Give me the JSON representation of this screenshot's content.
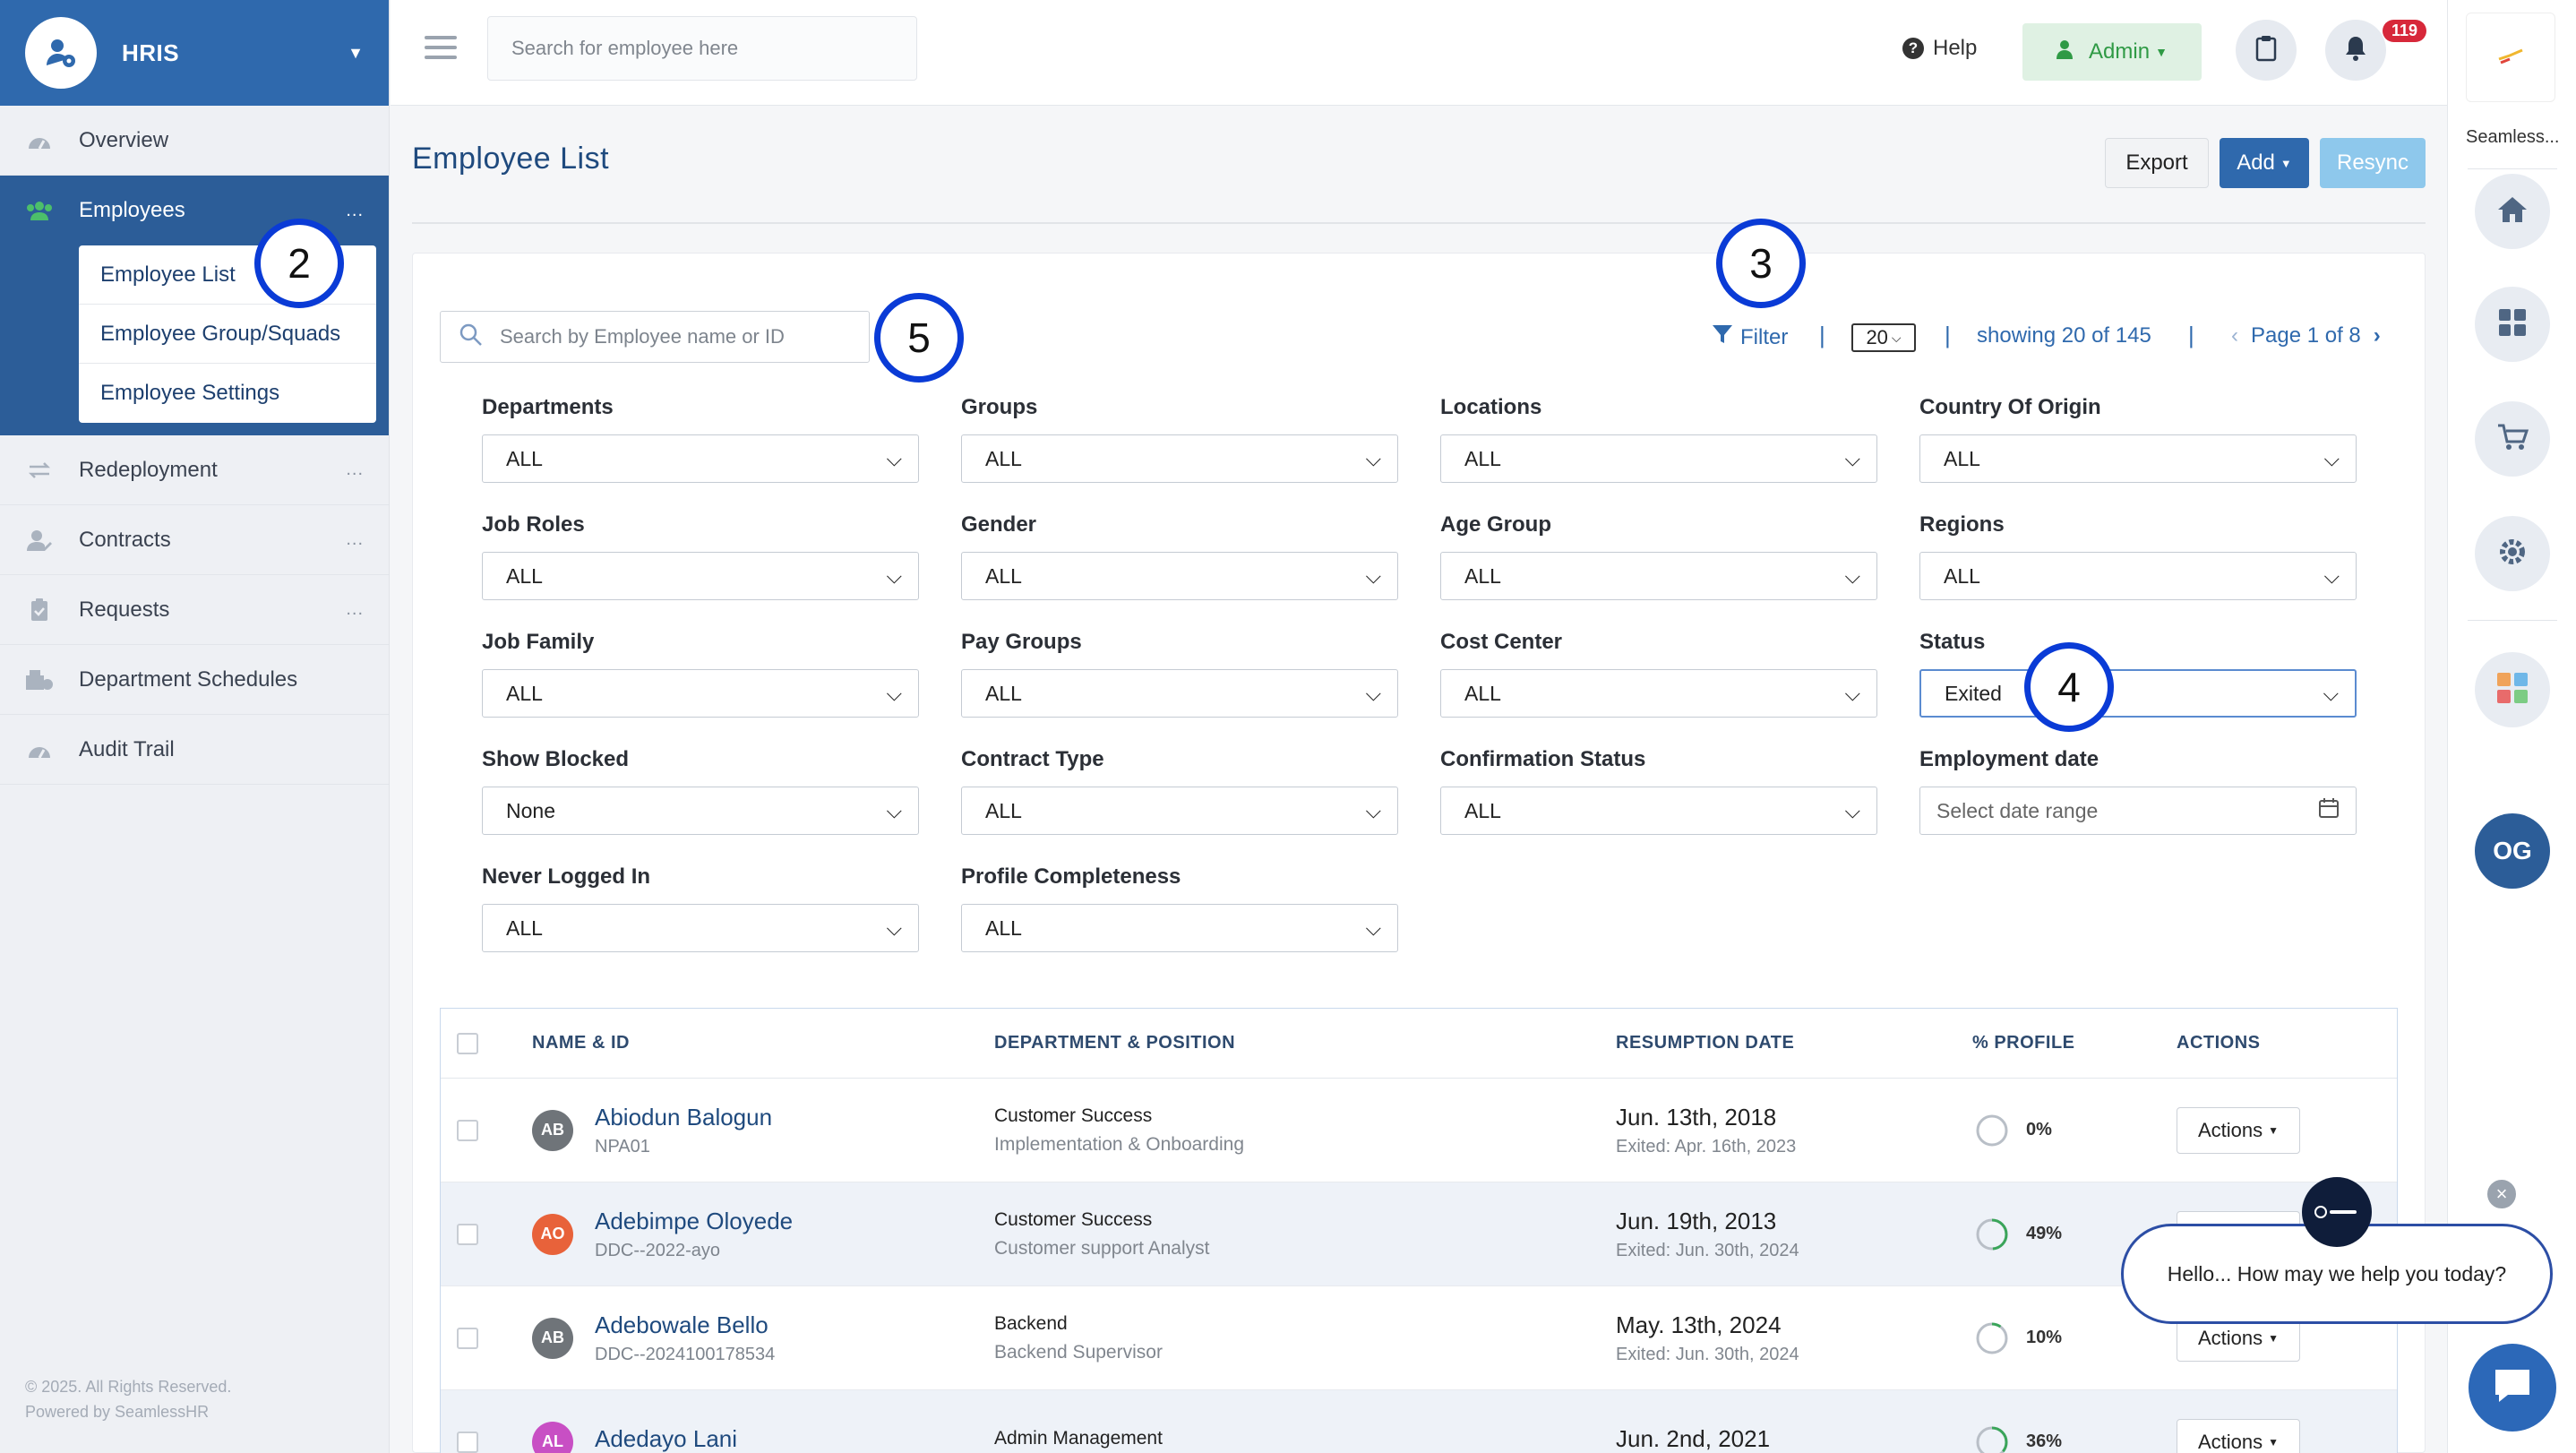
{
  "sidebar": {
    "app_title": "HRIS",
    "items": [
      {
        "label": "Overview"
      },
      {
        "label": "Employees",
        "more": "..."
      },
      {
        "label": "Redeployment",
        "more": "..."
      },
      {
        "label": "Contracts",
        "more": "..."
      },
      {
        "label": "Requests",
        "more": "..."
      },
      {
        "label": "Department Schedules"
      },
      {
        "label": "Audit Trail"
      }
    ],
    "subitems": [
      "Employee List",
      "Employee Group/Squads",
      "Employee Settings"
    ],
    "footer_line1": "© 2025. All Rights Reserved.",
    "footer_line2": "Powered by SeamlessHR"
  },
  "topbar": {
    "search_placeholder": "Search for employee here",
    "help_label": "Help",
    "admin_label": "Admin",
    "notification_count": "119"
  },
  "rail": {
    "app_name": "Seamless...",
    "user_initials": "OG"
  },
  "header": {
    "title": "Employee  List",
    "export_label": "Export",
    "add_label": "Add",
    "resync_label": "Resync"
  },
  "toolbar": {
    "search_placeholder": "Search by Employee name or ID",
    "filter_label": "Filter",
    "page_size": "20",
    "showing": "showing 20 of 145",
    "page": "Page 1 of 8",
    "separator": "|"
  },
  "filters": [
    {
      "label": "Departments",
      "value": "ALL"
    },
    {
      "label": "Groups",
      "value": "ALL"
    },
    {
      "label": "Locations",
      "value": "ALL"
    },
    {
      "label": "Country Of Origin",
      "value": "ALL"
    },
    {
      "label": "Job Roles",
      "value": "ALL"
    },
    {
      "label": "Gender",
      "value": "ALL"
    },
    {
      "label": "Age Group",
      "value": "ALL"
    },
    {
      "label": "Regions",
      "value": "ALL"
    },
    {
      "label": "Job Family",
      "value": "ALL"
    },
    {
      "label": "Pay Groups",
      "value": "ALL"
    },
    {
      "label": "Cost Center",
      "value": "ALL"
    },
    {
      "label": "Status",
      "value": "Exited"
    },
    {
      "label": "Show Blocked",
      "value": "None"
    },
    {
      "label": "Contract Type",
      "value": "ALL"
    },
    {
      "label": "Confirmation Status",
      "value": "ALL"
    },
    {
      "label": "Employment date",
      "value": "Select date range"
    },
    {
      "label": "Never Logged In",
      "value": "ALL"
    },
    {
      "label": "Profile Completeness",
      "value": "ALL"
    }
  ],
  "table": {
    "headers": [
      "NAME & ID",
      "DEPARTMENT & POSITION",
      "RESUMPTION DATE",
      "% PROFILE",
      "ACTIONS"
    ],
    "actions_label": "Actions",
    "rows": [
      {
        "initials": "AB",
        "avatar_color": "#6f7479",
        "name": "Abiodun Balogun",
        "id": "NPA01",
        "dept": "Customer Success",
        "position": "Implementation & Onboarding",
        "date": "Jun. 13th, 2018",
        "exited": "Exited: Apr. 16th, 2023",
        "profile": "0%",
        "profile_value": 0
      },
      {
        "initials": "AO",
        "avatar_color": "#e8623a",
        "name": "Adebimpe Oloyede",
        "id": "DDC--2022-ayo",
        "dept": "Customer Success",
        "position": "Customer support Analyst",
        "date": "Jun. 19th, 2013",
        "exited": "Exited: Jun. 30th, 2024",
        "profile": "49%",
        "profile_value": 49
      },
      {
        "initials": "AB",
        "avatar_color": "#6f7479",
        "name": "Adebowale Bello",
        "id": "DDC--2024100178534",
        "dept": "Backend",
        "position": "Backend Supervisor",
        "date": "May. 13th, 2024",
        "exited": "Exited: Jun. 30th, 2024",
        "profile": "10%",
        "profile_value": 10
      },
      {
        "initials": "AL",
        "avatar_color": "#c84fc4",
        "name": "Adedayo Lani",
        "id": "",
        "dept": "Admin Management",
        "position": "",
        "date": "Jun. 2nd, 2021",
        "exited": "",
        "profile": "36%",
        "profile_value": 36
      }
    ]
  },
  "annotations": [
    "2",
    "3",
    "4",
    "5"
  ],
  "chat": {
    "message": "Hello... How may we help you today?",
    "close": "×"
  },
  "colors": {
    "primary": "#2f69ad",
    "sidebar_active": "#2c5d98",
    "admin_green": "#2f9a45",
    "badge_red": "#d7283a",
    "annotation_blue": "#0a3bd6"
  }
}
